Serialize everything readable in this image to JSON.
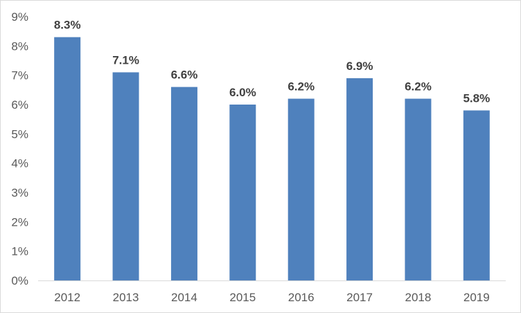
{
  "chart_data": {
    "type": "bar",
    "title": "",
    "xlabel": "",
    "ylabel": "",
    "categories": [
      "2012",
      "2013",
      "2014",
      "2015",
      "2016",
      "2017",
      "2018",
      "2019"
    ],
    "values": [
      8.3,
      7.1,
      6.6,
      6.0,
      6.2,
      6.9,
      6.2,
      5.8
    ],
    "data_labels": [
      "8.3%",
      "7.1%",
      "6.6%",
      "6.0%",
      "6.2%",
      "6.9%",
      "6.2%",
      "5.8%"
    ],
    "ylim": [
      0,
      9
    ],
    "y_ticks": [
      0,
      1,
      2,
      3,
      4,
      5,
      6,
      7,
      8,
      9
    ],
    "y_tick_labels": [
      "0%",
      "1%",
      "2%",
      "3%",
      "4%",
      "5%",
      "6%",
      "7%",
      "8%",
      "9%"
    ],
    "grid": false,
    "legend": "none",
    "colors": {
      "bar": "#4f81bd",
      "axis": "#d9d9d9",
      "tick_text": "#595959",
      "label_text": "#404040"
    }
  }
}
